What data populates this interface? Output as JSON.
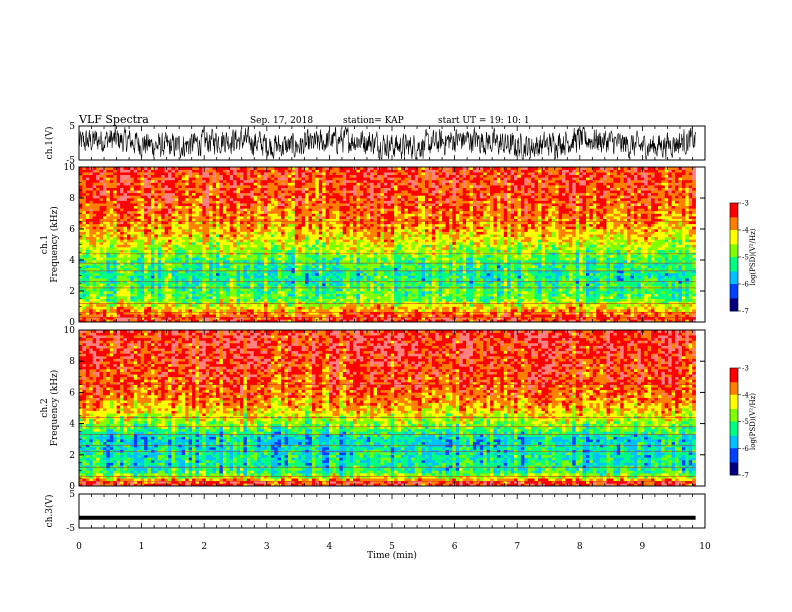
{
  "header": {
    "title": "VLF Spectra",
    "date": "Sep. 17, 2018",
    "station": "station= KAP",
    "start": "start  UT =   19: 10: 1"
  },
  "colors": {
    "spectrogram_ramp": [
      "#000080",
      "#0040ff",
      "#00c0ff",
      "#00ff80",
      "#80ff00",
      "#ffff00",
      "#ff8000",
      "#ff0000",
      "#ff8080",
      "#ffffff"
    ],
    "trace": "#000000"
  },
  "chart_data": [
    {
      "type": "line",
      "name": "ch1-waveform",
      "ylabel": "ch.1(V)",
      "ylim": [
        -5,
        5
      ],
      "yticks": [
        "5",
        "-5"
      ],
      "xlim": [
        0,
        10
      ],
      "description_values": {
        "x_end_min": 9.85,
        "typical_amplitude_V": [
          -3.5,
          4.5
        ]
      }
    },
    {
      "type": "heatmap",
      "name": "ch1-spectrogram",
      "ylabel": "ch.1\nFrequency (kHz)",
      "ylim": [
        0,
        10
      ],
      "yticks": [
        "0",
        "2",
        "4",
        "6",
        "8",
        "10"
      ],
      "xlim": [
        0,
        10
      ],
      "x_end_min": 9.85,
      "colorbar": {
        "label": "log(PSD)(V²/Hz)",
        "range": [
          -7,
          -3
        ],
        "ticks": [
          "-3",
          "-4",
          "-5",
          "-6",
          "-7"
        ]
      },
      "band_profile": [
        {
          "f_kHz": 0.25,
          "logpsd": -3.3
        },
        {
          "f_kHz": 1.0,
          "logpsd": -4.2
        },
        {
          "f_kHz": 1.5,
          "logpsd": -4.9
        },
        {
          "f_kHz": 2.0,
          "logpsd": -5.0
        },
        {
          "f_kHz": 3.0,
          "logpsd": -5.3
        },
        {
          "f_kHz": 4.0,
          "logpsd": -5.0
        },
        {
          "f_kHz": 5.0,
          "logpsd": -4.4
        },
        {
          "f_kHz": 6.0,
          "logpsd": -3.9
        },
        {
          "f_kHz": 8.0,
          "logpsd": -3.4
        },
        {
          "f_kHz": 10.0,
          "logpsd": -3.3
        }
      ]
    },
    {
      "type": "heatmap",
      "name": "ch2-spectrogram",
      "ylabel": "ch.2\nFrequency (kHz)",
      "ylim": [
        0,
        10
      ],
      "yticks": [
        "0",
        "2",
        "4",
        "6",
        "8",
        "10"
      ],
      "xlim": [
        0,
        10
      ],
      "x_end_min": 9.85,
      "colorbar": {
        "label": "log(PSD)(V²/Hz)",
        "range": [
          -7,
          -3
        ],
        "ticks": [
          "-3",
          "-4",
          "-5",
          "-6",
          "-7"
        ]
      },
      "band_profile": [
        {
          "f_kHz": 0.25,
          "logpsd": -3.3
        },
        {
          "f_kHz": 0.6,
          "logpsd": -4.6
        },
        {
          "f_kHz": 1.0,
          "logpsd": -5.3
        },
        {
          "f_kHz": 2.0,
          "logpsd": -5.4
        },
        {
          "f_kHz": 3.0,
          "logpsd": -5.6
        },
        {
          "f_kHz": 4.0,
          "logpsd": -4.7
        },
        {
          "f_kHz": 5.0,
          "logpsd": -4.0
        },
        {
          "f_kHz": 6.0,
          "logpsd": -3.6
        },
        {
          "f_kHz": 8.0,
          "logpsd": -3.3
        },
        {
          "f_kHz": 10.0,
          "logpsd": -3.2
        }
      ]
    },
    {
      "type": "line",
      "name": "ch3-waveform",
      "ylabel": "ch.3(V)",
      "ylim": [
        -5,
        5
      ],
      "yticks": [
        "5",
        "-5"
      ],
      "xlim": [
        0,
        10
      ],
      "x": [
        0,
        9.85
      ],
      "y": [
        -2,
        -2
      ]
    }
  ],
  "xaxis": {
    "label": "Time (min)",
    "range": [
      0,
      10
    ],
    "ticks": [
      "0",
      "1",
      "2",
      "3",
      "4",
      "5",
      "6",
      "7",
      "8",
      "9",
      "10"
    ]
  }
}
